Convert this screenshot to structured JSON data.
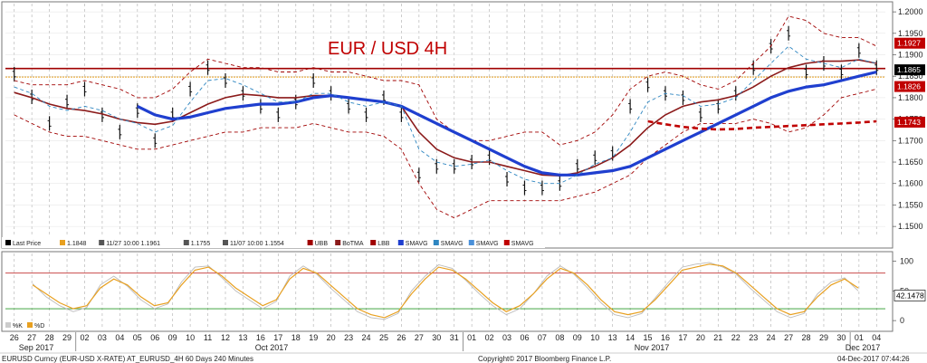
{
  "chart_data": [
    {
      "type": "line",
      "title": "EUR / USD 4H",
      "ylim": [
        1.1475,
        1.2015
      ],
      "yticks": [
        "1.2000",
        "1.1950",
        "1.1900",
        "1.1850",
        "1.1800",
        "1.1750",
        "1.1700",
        "1.1650",
        "1.1600",
        "1.1550",
        "1.1500"
      ],
      "x_categories": [
        "26",
        "27",
        "28",
        "29",
        "02",
        "03",
        "04",
        "05",
        "06",
        "09",
        "10",
        "11",
        "12",
        "13",
        "16",
        "17",
        "18",
        "19",
        "20",
        "23",
        "24",
        "25",
        "26",
        "27",
        "30",
        "31",
        "01",
        "02",
        "03",
        "06",
        "07",
        "08",
        "09",
        "10",
        "13",
        "14",
        "15",
        "16",
        "17",
        "20",
        "21",
        "22",
        "23",
        "24",
        "27",
        "28",
        "29",
        "30",
        "01",
        "04"
      ],
      "month_labels": [
        "Sep 2017",
        "Oct 2017",
        "Nov 2017",
        "Dec 2017"
      ],
      "horizontal_levels": [
        {
          "name": "resistance",
          "value": 1.1868,
          "color": "#a00000"
        },
        {
          "name": "last_price_ref",
          "value": 1.1848,
          "color": "#e8a020"
        }
      ],
      "series": [
        {
          "name": "Last Price",
          "color": "#111111",
          "kind": "bar",
          "values": [
            1.1855,
            1.1802,
            1.174,
            1.179,
            1.182,
            1.176,
            1.172,
            1.177,
            1.17,
            1.176,
            1.182,
            1.187,
            1.184,
            1.181,
            1.178,
            1.176,
            1.179,
            1.184,
            1.181,
            1.178,
            1.176,
            1.18,
            1.176,
            1.162,
            1.164,
            1.164,
            1.165,
            1.166,
            1.161,
            1.159,
            1.159,
            1.16,
            1.164,
            1.166,
            1.167,
            1.178,
            1.183,
            1.181,
            1.18,
            1.176,
            1.178,
            1.181,
            1.187,
            1.192,
            1.195,
            1.186,
            1.188,
            1.186,
            1.191,
            1.187
          ]
        },
        {
          "name": "UBB",
          "color": "#a00000",
          "kind": "dashed",
          "values": [
            1.184,
            1.183,
            1.183,
            1.183,
            1.184,
            1.183,
            1.182,
            1.18,
            1.18,
            1.182,
            1.186,
            1.189,
            1.188,
            1.187,
            1.187,
            1.186,
            1.186,
            1.187,
            1.186,
            1.186,
            1.185,
            1.184,
            1.184,
            1.183,
            1.175,
            1.172,
            1.17,
            1.17,
            1.171,
            1.172,
            1.172,
            1.169,
            1.17,
            1.172,
            1.176,
            1.182,
            1.185,
            1.186,
            1.185,
            1.183,
            1.182,
            1.184,
            1.188,
            1.192,
            1.199,
            1.198,
            1.195,
            1.194,
            1.194,
            1.192
          ]
        },
        {
          "name": "LBB",
          "color": "#a00000",
          "kind": "dashed",
          "values": [
            1.176,
            1.174,
            1.172,
            1.171,
            1.171,
            1.17,
            1.169,
            1.168,
            1.168,
            1.169,
            1.17,
            1.171,
            1.172,
            1.172,
            1.173,
            1.173,
            1.173,
            1.174,
            1.173,
            1.172,
            1.172,
            1.171,
            1.168,
            1.16,
            1.154,
            1.152,
            1.154,
            1.156,
            1.156,
            1.156,
            1.156,
            1.156,
            1.157,
            1.158,
            1.16,
            1.162,
            1.166,
            1.169,
            1.172,
            1.174,
            1.174,
            1.174,
            1.175,
            1.174,
            1.172,
            1.173,
            1.176,
            1.18,
            1.181,
            1.182
          ]
        },
        {
          "name": "BoTMA",
          "color": "#8b1a1a",
          "kind": "solid",
          "values": [
            1.1812,
            1.18,
            1.1785,
            1.1775,
            1.177,
            1.1762,
            1.175,
            1.1742,
            1.1738,
            1.1745,
            1.1765,
            1.1785,
            1.18,
            1.1808,
            1.1805,
            1.18,
            1.18,
            1.1805,
            1.1805,
            1.18,
            1.1795,
            1.179,
            1.178,
            1.172,
            1.168,
            1.166,
            1.165,
            1.165,
            1.164,
            1.163,
            1.162,
            1.1618,
            1.1625,
            1.164,
            1.166,
            1.169,
            1.173,
            1.176,
            1.178,
            1.179,
            1.1795,
            1.1805,
            1.1825,
            1.185,
            1.187,
            1.188,
            1.1885,
            1.1885,
            1.1888,
            1.188
          ]
        },
        {
          "name": "SMAVG",
          "color": "#1f3fcf",
          "kind": "thick",
          "values": [
            null,
            null,
            null,
            null,
            null,
            null,
            null,
            1.178,
            1.176,
            1.175,
            1.1755,
            1.1765,
            1.1775,
            1.178,
            1.1785,
            1.1785,
            1.179,
            1.18,
            1.1805,
            1.18,
            1.1795,
            1.179,
            1.178,
            1.176,
            1.174,
            1.172,
            1.17,
            1.168,
            1.166,
            1.164,
            1.1625,
            1.162,
            1.162,
            1.1625,
            1.163,
            1.164,
            1.166,
            1.168,
            1.17,
            1.172,
            1.174,
            1.176,
            1.178,
            1.18,
            1.1815,
            1.1825,
            1.183,
            1.184,
            1.185,
            1.186
          ]
        },
        {
          "name": "SMAVG",
          "color": "#2e86c1",
          "kind": "dashed",
          "values": [
            1.1825,
            1.181,
            1.178,
            1.177,
            1.178,
            1.177,
            1.175,
            1.174,
            1.172,
            1.1735,
            1.179,
            1.184,
            1.1845,
            1.183,
            1.181,
            1.179,
            1.179,
            1.181,
            1.181,
            1.179,
            1.178,
            1.179,
            1.178,
            1.168,
            1.165,
            1.164,
            1.1645,
            1.1655,
            1.163,
            1.161,
            1.16,
            1.16,
            1.162,
            1.1645,
            1.166,
            1.172,
            1.179,
            1.181,
            1.1805,
            1.178,
            1.1785,
            1.18,
            1.184,
            1.188,
            1.192,
            1.189,
            1.188,
            1.187,
            1.189,
            1.188
          ]
        },
        {
          "name": "SMAVG",
          "color": "#c00000",
          "kind": "thickdash",
          "values": [
            null,
            null,
            null,
            null,
            null,
            null,
            null,
            null,
            null,
            null,
            null,
            null,
            null,
            null,
            null,
            null,
            null,
            null,
            null,
            null,
            null,
            null,
            null,
            null,
            null,
            null,
            null,
            null,
            null,
            null,
            null,
            null,
            null,
            null,
            null,
            null,
            1.1745,
            1.1738,
            1.1732,
            1.1728,
            1.1726,
            1.1727,
            1.173,
            1.1732,
            1.1734,
            1.1736,
            1.1738,
            1.174,
            1.1742,
            1.1745
          ]
        }
      ],
      "price_tags": [
        {
          "label": "1.1927",
          "value": 1.1927,
          "color": "#c00000"
        },
        {
          "label": "1.1865",
          "value": 1.1865,
          "color": "#000000"
        },
        {
          "label": "1.1826",
          "value": 1.1826,
          "color": "#c00000"
        },
        {
          "label": "1.1743",
          "value": 1.1743,
          "color": "#c00000"
        }
      ],
      "legend": [
        {
          "label": "Last Price",
          "color": "#000000"
        },
        {
          "label": "1.1848",
          "color": "#e8a020"
        },
        {
          "label": "11/27 10:00 1.1961",
          "color": "#555555"
        },
        {
          "label": "1.1755",
          "color": "#555555"
        },
        {
          "label": "11/07 10:00 1.1554",
          "color": "#555555"
        },
        {
          "label": "UBB",
          "color": "#a00000"
        },
        {
          "label": "BoTMA",
          "color": "#8b1a1a"
        },
        {
          "label": "LBB",
          "color": "#a00000"
        },
        {
          "label": "SMAVG",
          "color": "#1f3fcf"
        },
        {
          "label": "SMAVG",
          "color": "#2e86c1"
        },
        {
          "label": "SMAVG",
          "color": "#4a90d9"
        },
        {
          "label": "SMAVG",
          "color": "#c00000"
        }
      ]
    },
    {
      "type": "line",
      "title": "",
      "ylim": [
        -12,
        110
      ],
      "yticks": [
        "100",
        "50",
        "0"
      ],
      "levels": [
        {
          "value": 80,
          "color": "#c03030"
        },
        {
          "value": 20,
          "color": "#2a9a2a"
        }
      ],
      "tag": {
        "label": "42.1478",
        "value": 42.1478
      },
      "legend": [
        {
          "label": "%K",
          "color": "#cccccc"
        },
        {
          "label": "%D",
          "color": "#e8a020"
        }
      ],
      "series": [
        {
          "name": "%D",
          "color": "#e8a020",
          "values": [
            60,
            45,
            30,
            20,
            25,
            55,
            70,
            60,
            40,
            25,
            30,
            60,
            85,
            90,
            75,
            55,
            40,
            25,
            35,
            70,
            88,
            80,
            60,
            40,
            20,
            10,
            5,
            15,
            45,
            70,
            90,
            85,
            70,
            50,
            30,
            15,
            25,
            45,
            70,
            88,
            80,
            60,
            35,
            15,
            10,
            15,
            35,
            60,
            85,
            90,
            95,
            92,
            80,
            60,
            40,
            20,
            10,
            15,
            40,
            60,
            70,
            55
          ]
        },
        {
          "name": "%K",
          "color": "#bbbbbb",
          "values": [
            62,
            40,
            25,
            15,
            22,
            60,
            75,
            58,
            35,
            20,
            28,
            65,
            90,
            92,
            72,
            50,
            35,
            20,
            32,
            75,
            92,
            78,
            55,
            35,
            15,
            5,
            2,
            12,
            50,
            75,
            94,
            88,
            68,
            45,
            25,
            10,
            20,
            45,
            75,
            92,
            78,
            55,
            30,
            10,
            5,
            12,
            38,
            65,
            90,
            95,
            98,
            90,
            78,
            55,
            35,
            15,
            5,
            12,
            45,
            65,
            72,
            50
          ]
        }
      ]
    }
  ],
  "footer": {
    "left": "EURUSD Curncy (EUR-USD X-RATE) AT_EURUSD_4H 60 Days 240 Minutes",
    "center": "Copyright© 2017 Bloomberg Finance L.P.",
    "right": "04-Dec-2017 07:44:26"
  }
}
